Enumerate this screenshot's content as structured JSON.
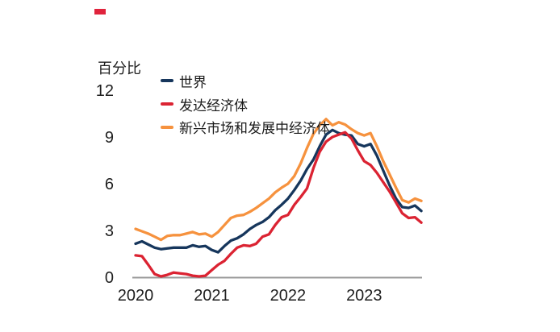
{
  "panel": {
    "background": "#ffffff",
    "accent_bar_color": "#e0233c"
  },
  "chart_data": {
    "type": "line",
    "unit_label": "百分比",
    "x_axis": {
      "tick_labels": [
        "2020",
        "2021",
        "2022",
        "2023"
      ],
      "frequency": "monthly",
      "start": "2020-01",
      "end": "2023-10"
    },
    "y_axis": {
      "ticks": [
        0,
        3,
        6,
        9,
        12
      ],
      "range": [
        0,
        12
      ]
    },
    "grid": false,
    "legend_position": "top-left-inside",
    "axis_color": "#999999",
    "text_color": "#1f1f1f",
    "series": [
      {
        "name": "世界",
        "color": "#16365c",
        "values": [
          2.15,
          2.3,
          2.1,
          1.9,
          1.8,
          1.85,
          1.9,
          1.9,
          1.9,
          2.05,
          1.95,
          2.0,
          1.75,
          1.6,
          2.0,
          2.35,
          2.5,
          2.75,
          3.1,
          3.35,
          3.55,
          3.85,
          4.3,
          4.65,
          5.05,
          5.6,
          6.2,
          6.95,
          7.55,
          8.4,
          9.15,
          9.45,
          9.25,
          9.15,
          9.1,
          8.55,
          8.4,
          8.55,
          7.8,
          6.85,
          5.9,
          5.05,
          4.5,
          4.45,
          4.6,
          4.25
        ]
      },
      {
        "name": "发达经济体",
        "color": "#db2332",
        "values": [
          1.4,
          1.35,
          0.8,
          0.2,
          0.05,
          0.15,
          0.3,
          0.25,
          0.2,
          0.1,
          0.05,
          0.1,
          0.45,
          0.8,
          1.05,
          1.5,
          1.9,
          2.05,
          2.0,
          2.15,
          2.6,
          2.75,
          3.35,
          3.85,
          4.0,
          4.65,
          5.15,
          5.7,
          7.0,
          8.05,
          8.7,
          9.0,
          9.15,
          9.3,
          8.9,
          8.15,
          7.45,
          7.2,
          6.7,
          6.1,
          5.5,
          4.8,
          4.1,
          3.8,
          3.85,
          3.5
        ]
      },
      {
        "name": "新兴市场和发展中经济体",
        "color": "#f6923e",
        "values": [
          3.1,
          2.95,
          2.8,
          2.6,
          2.4,
          2.65,
          2.7,
          2.7,
          2.8,
          2.9,
          2.75,
          2.8,
          2.6,
          2.9,
          3.35,
          3.8,
          3.95,
          4.0,
          4.2,
          4.45,
          4.75,
          5.05,
          5.45,
          5.75,
          6.0,
          6.5,
          7.3,
          8.3,
          9.2,
          9.75,
          10.15,
          9.75,
          9.95,
          9.8,
          9.5,
          9.25,
          9.1,
          9.25,
          8.4,
          7.45,
          6.6,
          5.75,
          4.95,
          4.8,
          5.05,
          4.9
        ]
      }
    ]
  }
}
